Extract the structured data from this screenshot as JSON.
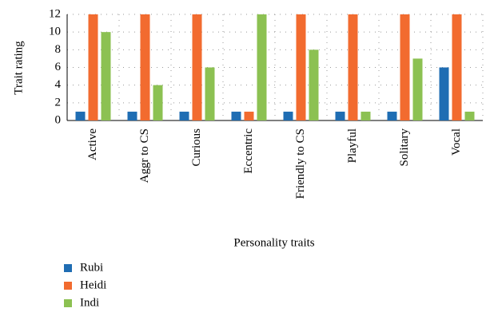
{
  "chart_data": {
    "type": "bar",
    "categories": [
      "Active",
      "Aggr to CS",
      "Curious",
      "Eccentric",
      "Friendly to CS",
      "Playful",
      "Solitary",
      "Vocal"
    ],
    "series": [
      {
        "name": "Rubi",
        "color": "#1f6db3",
        "values": [
          1,
          1,
          1,
          1,
          1,
          1,
          1,
          6
        ]
      },
      {
        "name": "Heidi",
        "color": "#f26b2f",
        "values": [
          12,
          12,
          12,
          1,
          12,
          12,
          12,
          12
        ]
      },
      {
        "name": "Indi",
        "color": "#8cc152",
        "values": [
          10,
          4,
          6,
          12,
          8,
          1,
          7,
          1
        ]
      }
    ],
    "xlabel": "Personality traits",
    "ylabel": "Trait rating",
    "ylim": [
      0,
      12
    ],
    "yticks": [
      0,
      2,
      4,
      6,
      8,
      10,
      12
    ],
    "grid": true
  }
}
